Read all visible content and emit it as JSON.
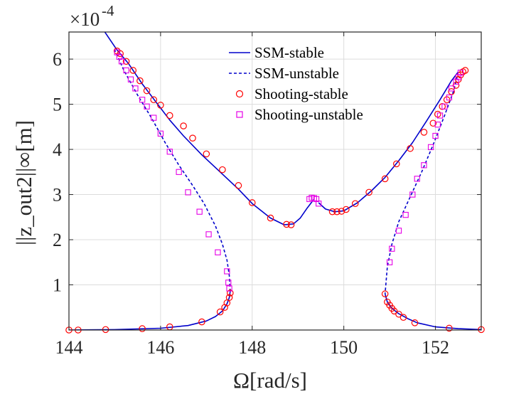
{
  "chart_data": {
    "type": "line",
    "title": "",
    "xlabel": "Ω[rad/s]",
    "ylabel": "||z_out2||∞[m]",
    "y_multiplier_label": "×10",
    "y_multiplier_exp": "-4",
    "xlim": [
      144,
      153
    ],
    "ylim": [
      0,
      6.6
    ],
    "x_ticks": [
      144,
      146,
      148,
      150,
      152
    ],
    "y_ticks": [
      1,
      2,
      3,
      4,
      5,
      6
    ],
    "grid": true,
    "legend_position": "top-center",
    "series": [
      {
        "name": "SSM-stable",
        "style": "solid-line",
        "color": "#0000cc",
        "segments": [
          [
            [
              144.0,
              0.0
            ],
            [
              145.0,
              0.01
            ],
            [
              146.0,
              0.04
            ],
            [
              146.6,
              0.1
            ],
            [
              147.0,
              0.2
            ],
            [
              147.2,
              0.3
            ],
            [
              147.35,
              0.42
            ],
            [
              147.45,
              0.58
            ],
            [
              147.5,
              0.72
            ],
            [
              147.52,
              0.85
            ]
          ],
          [
            [
              144.75,
              6.65
            ],
            [
              145.05,
              6.2
            ],
            [
              145.3,
              5.9
            ],
            [
              145.6,
              5.45
            ],
            [
              145.9,
              5.05
            ],
            [
              146.2,
              4.65
            ],
            [
              146.5,
              4.3
            ],
            [
              146.9,
              3.88
            ],
            [
              147.3,
              3.5
            ],
            [
              147.7,
              3.12
            ],
            [
              148.0,
              2.8
            ],
            [
              148.4,
              2.48
            ],
            [
              148.7,
              2.33
            ],
            [
              148.9,
              2.35
            ],
            [
              149.05,
              2.48
            ],
            [
              149.2,
              2.7
            ],
            [
              149.35,
              2.9
            ]
          ],
          [
            [
              149.45,
              2.82
            ],
            [
              149.6,
              2.68
            ],
            [
              149.8,
              2.62
            ],
            [
              150.0,
              2.64
            ],
            [
              150.3,
              2.82
            ],
            [
              150.6,
              3.08
            ],
            [
              150.9,
              3.38
            ],
            [
              151.2,
              3.75
            ],
            [
              151.5,
              4.15
            ],
            [
              151.8,
              4.62
            ],
            [
              152.1,
              5.1
            ],
            [
              152.35,
              5.52
            ],
            [
              152.5,
              5.72
            ]
          ],
          [
            [
              150.9,
              0.8
            ],
            [
              150.95,
              0.62
            ],
            [
              151.05,
              0.48
            ],
            [
              151.2,
              0.36
            ],
            [
              151.4,
              0.25
            ],
            [
              151.6,
              0.16
            ],
            [
              152.0,
              0.07
            ],
            [
              152.5,
              0.03
            ],
            [
              153.0,
              0.01
            ]
          ]
        ]
      },
      {
        "name": "SSM-unstable",
        "style": "dashed-line",
        "color": "#0000cc",
        "segments": [
          [
            [
              147.52,
              0.85
            ],
            [
              147.5,
              1.2
            ],
            [
              147.45,
              1.55
            ],
            [
              147.35,
              1.9
            ],
            [
              147.2,
              2.3
            ],
            [
              146.95,
              2.8
            ],
            [
              146.7,
              3.2
            ],
            [
              146.4,
              3.65
            ],
            [
              146.1,
              4.15
            ],
            [
              145.8,
              4.7
            ],
            [
              145.5,
              5.2
            ],
            [
              145.2,
              5.75
            ],
            [
              145.0,
              6.2
            ]
          ],
          [
            [
              152.5,
              5.72
            ],
            [
              152.4,
              5.3
            ],
            [
              152.2,
              4.75
            ],
            [
              151.95,
              4.1
            ],
            [
              151.7,
              3.5
            ],
            [
              151.45,
              2.95
            ],
            [
              151.2,
              2.4
            ],
            [
              151.05,
              1.9
            ],
            [
              150.95,
              1.4
            ],
            [
              150.9,
              0.8
            ]
          ]
        ]
      },
      {
        "name": "Shooting-stable",
        "style": "circle-marker",
        "color": "#ff0000",
        "points": [
          [
            144.0,
            0.0
          ],
          [
            144.2,
            0.0
          ],
          [
            144.8,
            0.01
          ],
          [
            145.6,
            0.03
          ],
          [
            146.2,
            0.07
          ],
          [
            146.9,
            0.18
          ],
          [
            147.3,
            0.4
          ],
          [
            147.4,
            0.5
          ],
          [
            147.45,
            0.6
          ],
          [
            147.5,
            0.72
          ],
          [
            147.52,
            0.82
          ],
          [
            145.05,
            6.18
          ],
          [
            145.12,
            6.12
          ],
          [
            145.25,
            5.95
          ],
          [
            145.4,
            5.75
          ],
          [
            145.55,
            5.52
          ],
          [
            145.7,
            5.3
          ],
          [
            145.85,
            5.1
          ],
          [
            146.0,
            4.98
          ],
          [
            146.2,
            4.75
          ],
          [
            146.5,
            4.52
          ],
          [
            146.7,
            4.25
          ],
          [
            147.0,
            3.9
          ],
          [
            147.35,
            3.55
          ],
          [
            147.7,
            3.2
          ],
          [
            148.0,
            2.82
          ],
          [
            148.4,
            2.48
          ],
          [
            148.75,
            2.34
          ],
          [
            148.85,
            2.33
          ],
          [
            149.75,
            2.62
          ],
          [
            149.85,
            2.62
          ],
          [
            149.95,
            2.63
          ],
          [
            150.05,
            2.67
          ],
          [
            150.25,
            2.8
          ],
          [
            150.55,
            3.05
          ],
          [
            150.9,
            3.35
          ],
          [
            151.15,
            3.68
          ],
          [
            151.45,
            4.02
          ],
          [
            151.75,
            4.38
          ],
          [
            151.95,
            4.58
          ],
          [
            152.05,
            4.78
          ],
          [
            152.15,
            4.95
          ],
          [
            152.25,
            5.1
          ],
          [
            152.35,
            5.28
          ],
          [
            152.45,
            5.42
          ],
          [
            152.5,
            5.55
          ],
          [
            152.55,
            5.65
          ],
          [
            152.6,
            5.72
          ],
          [
            152.65,
            5.75
          ],
          [
            150.9,
            0.8
          ],
          [
            150.95,
            0.62
          ],
          [
            151.0,
            0.55
          ],
          [
            151.05,
            0.48
          ],
          [
            151.1,
            0.42
          ],
          [
            151.2,
            0.35
          ],
          [
            151.3,
            0.28
          ],
          [
            151.55,
            0.16
          ],
          [
            152.3,
            0.04
          ],
          [
            153.0,
            0.01
          ]
        ]
      },
      {
        "name": "Shooting-unstable",
        "style": "square-marker",
        "color": "#e600e6",
        "points": [
          [
            145.05,
            6.15
          ],
          [
            145.1,
            6.05
          ],
          [
            145.15,
            5.95
          ],
          [
            145.25,
            5.75
          ],
          [
            145.35,
            5.55
          ],
          [
            145.45,
            5.35
          ],
          [
            145.6,
            5.1
          ],
          [
            145.7,
            4.95
          ],
          [
            145.85,
            4.7
          ],
          [
            146.0,
            4.35
          ],
          [
            146.2,
            3.95
          ],
          [
            146.4,
            3.5
          ],
          [
            146.6,
            3.05
          ],
          [
            146.85,
            2.62
          ],
          [
            147.05,
            2.12
          ],
          [
            147.25,
            1.72
          ],
          [
            147.45,
            1.3
          ],
          [
            147.48,
            1.05
          ],
          [
            147.5,
            0.92
          ],
          [
            149.25,
            2.9
          ],
          [
            149.3,
            2.93
          ],
          [
            149.35,
            2.92
          ],
          [
            149.4,
            2.9
          ],
          [
            149.45,
            2.8
          ],
          [
            151.0,
            1.5
          ],
          [
            151.05,
            1.8
          ],
          [
            151.2,
            2.2
          ],
          [
            151.35,
            2.55
          ],
          [
            151.5,
            3.0
          ],
          [
            151.6,
            3.35
          ],
          [
            151.75,
            3.65
          ],
          [
            151.9,
            4.05
          ],
          [
            152.0,
            4.3
          ],
          [
            152.05,
            4.55
          ],
          [
            152.1,
            4.75
          ],
          [
            152.2,
            4.95
          ],
          [
            152.3,
            5.15
          ],
          [
            152.35,
            5.35
          ],
          [
            152.45,
            5.5
          ],
          [
            152.5,
            5.6
          ],
          [
            152.55,
            5.7
          ]
        ]
      }
    ]
  }
}
